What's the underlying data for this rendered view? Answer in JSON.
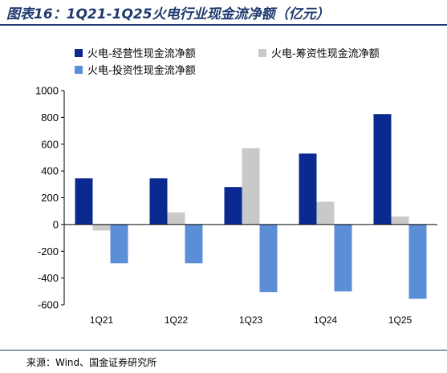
{
  "colors": {
    "title": "#1f3a6e",
    "axis": "#000000"
  },
  "chart_data": {
    "type": "bar",
    "title": "图表16：1Q21-1Q25火电行业现金流净额（亿元）",
    "categories": [
      "1Q21",
      "1Q22",
      "1Q23",
      "1Q24",
      "1Q25"
    ],
    "series": [
      {
        "name": "火电-经营性现金流净额",
        "color": "#0b2a8f",
        "values": [
          345,
          345,
          280,
          530,
          825
        ]
      },
      {
        "name": "火电-筹资性现金流净额",
        "color": "#c9c9c9",
        "values": [
          -45,
          90,
          570,
          170,
          60
        ]
      },
      {
        "name": "火电-投资性现金流净额",
        "color": "#5b8ed6",
        "values": [
          -290,
          -290,
          -505,
          -500,
          -555
        ]
      }
    ],
    "ylim": [
      -600,
      1000
    ],
    "yticks": [
      -600,
      -400,
      -200,
      0,
      200,
      400,
      600,
      800,
      1000
    ],
    "xlabel": "",
    "ylabel": "",
    "grid": false,
    "legend_position": "top"
  },
  "source": "来源：Wind、国金证券研究所"
}
